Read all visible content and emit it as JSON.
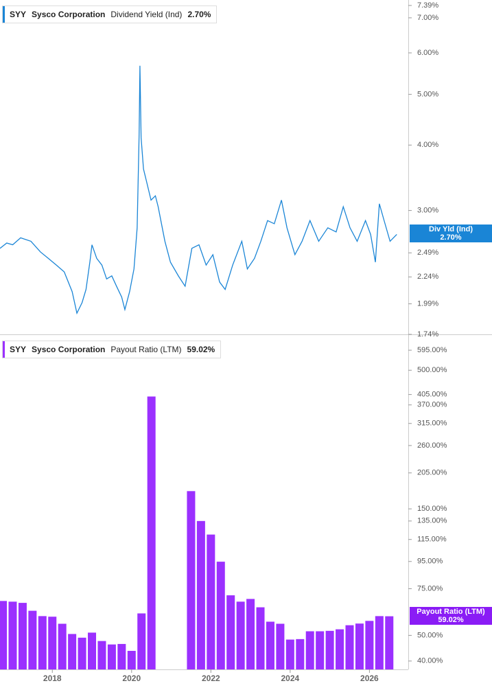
{
  "chart_data": [
    {
      "type": "line",
      "ticker": "SYY",
      "company": "Sysco Corporation",
      "last_label": "2.70%",
      "tag_name": "Div Yld (Ind)",
      "log_scale": true,
      "xlim": [
        2016.68,
        2026.98
      ],
      "ylim": [
        1.74,
        7.57
      ],
      "yticks": [
        {
          "value": 7.39,
          "label": "7.39%"
        },
        {
          "value": 7.0,
          "label": "7.00%"
        },
        {
          "value": 6.0,
          "label": "6.00%"
        },
        {
          "value": 5.0,
          "label": "5.00%"
        },
        {
          "value": 4.0,
          "label": "4.00%"
        },
        {
          "value": 3.0,
          "label": "3.00%"
        },
        {
          "value": 2.49,
          "label": "2.49%"
        },
        {
          "value": 2.24,
          "label": "2.24%"
        },
        {
          "value": 1.99,
          "label": "1.99%"
        },
        {
          "value": 1.74,
          "label": "1.74%"
        }
      ],
      "x": [
        2016.68,
        2016.85,
        2017.0,
        2017.2,
        2017.46,
        2017.7,
        2017.9,
        2018.1,
        2018.3,
        2018.5,
        2018.62,
        2018.75,
        2018.85,
        2018.95,
        2019.0,
        2019.12,
        2019.25,
        2019.37,
        2019.5,
        2019.62,
        2019.75,
        2019.83,
        2019.95,
        2020.06,
        2020.14,
        2020.19,
        2020.21,
        2020.24,
        2020.3,
        2020.38,
        2020.49,
        2020.6,
        2020.67,
        2020.84,
        2020.98,
        2021.18,
        2021.35,
        2021.52,
        2021.7,
        2021.88,
        2022.05,
        2022.22,
        2022.36,
        2022.55,
        2022.78,
        2022.92,
        2023.1,
        2023.26,
        2023.43,
        2023.6,
        2023.78,
        2023.92,
        2024.12,
        2024.3,
        2024.5,
        2024.72,
        2024.95,
        2025.16,
        2025.34,
        2025.51,
        2025.69,
        2025.9,
        2026.03,
        2026.15,
        2026.25,
        2026.37,
        2026.52,
        2026.69
      ],
      "series": [
        {
          "name": "Dividend Yield (Ind)",
          "color": "#1a85d6",
          "values": [
            2.54,
            2.6,
            2.58,
            2.66,
            2.62,
            2.5,
            2.43,
            2.36,
            2.29,
            2.1,
            1.91,
            2.0,
            2.12,
            2.4,
            2.58,
            2.43,
            2.36,
            2.22,
            2.25,
            2.15,
            2.05,
            1.94,
            2.1,
            2.32,
            2.78,
            4.2,
            5.67,
            4.13,
            3.6,
            3.4,
            3.14,
            3.2,
            3.05,
            2.62,
            2.39,
            2.25,
            2.15,
            2.54,
            2.58,
            2.36,
            2.47,
            2.19,
            2.12,
            2.36,
            2.62,
            2.32,
            2.43,
            2.62,
            2.87,
            2.83,
            3.14,
            2.78,
            2.47,
            2.62,
            2.87,
            2.62,
            2.78,
            2.73,
            3.05,
            2.78,
            2.62,
            2.87,
            2.7,
            2.39,
            3.09,
            2.87,
            2.62,
            2.7
          ]
        }
      ]
    },
    {
      "type": "bar",
      "ticker": "SYY",
      "company": "Sysco Corporation",
      "last_label": "59.02%",
      "log_scale": true,
      "xlim": [
        2016.68,
        2026.98
      ],
      "ylim": [
        37.2,
        651
      ],
      "xticks": [
        2018,
        2020,
        2022,
        2024,
        2026
      ],
      "yticks": [
        {
          "value": 595,
          "label": "595.00%"
        },
        {
          "value": 500,
          "label": "500.00%"
        },
        {
          "value": 405,
          "label": "405.00%"
        },
        {
          "value": 370,
          "label": "370.00%"
        },
        {
          "value": 315,
          "label": "315.00%"
        },
        {
          "value": 260,
          "label": "260.00%"
        },
        {
          "value": 205,
          "label": "205.00%"
        },
        {
          "value": 150,
          "label": "150.00%"
        },
        {
          "value": 135,
          "label": "135.00%"
        },
        {
          "value": 115,
          "label": "115.00%"
        },
        {
          "value": 95,
          "label": "95.00%"
        },
        {
          "value": 75,
          "label": "75.00%"
        },
        {
          "value": 50,
          "label": "50.00%"
        },
        {
          "value": 40,
          "label": "40.00%"
        }
      ],
      "x": [
        2016.75,
        2017.0,
        2017.25,
        2017.5,
        2017.75,
        2018.0,
        2018.25,
        2018.5,
        2018.75,
        2019.0,
        2019.25,
        2019.5,
        2019.75,
        2020.0,
        2020.25,
        2020.5,
        2021.5,
        2021.75,
        2022.0,
        2022.25,
        2022.5,
        2022.75,
        2023.0,
        2023.25,
        2023.5,
        2023.75,
        2024.0,
        2024.25,
        2024.5,
        2024.75,
        2025.0,
        2025.25,
        2025.5,
        2025.75,
        2026.0,
        2026.25,
        2026.5
      ],
      "series": [
        {
          "name": "Payout Ratio (LTM)",
          "color": "#9b30ff",
          "values": [
            67.4,
            67.0,
            66.3,
            61.9,
            59.1,
            58.8,
            55.3,
            50.6,
            49.0,
            51.2,
            47.6,
            46.2,
            46.4,
            43.7,
            60.5,
            398,
            175,
            135,
            120,
            94.8,
            70.8,
            67.0,
            68.6,
            63.8,
            56.3,
            55.3,
            48.2,
            48.4,
            51.8,
            51.8,
            52.0,
            52.7,
            54.6,
            55.4,
            56.7,
            59.1,
            59.02
          ]
        }
      ]
    }
  ]
}
